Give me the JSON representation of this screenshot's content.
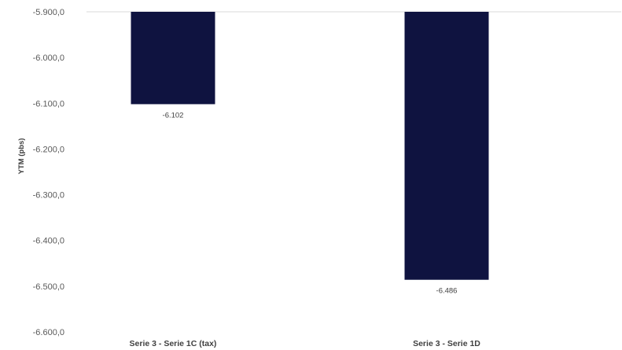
{
  "chart_data": {
    "type": "bar",
    "title": "",
    "xlabel": "",
    "ylabel": "YTM (pbs)",
    "categories": [
      "Serie 3 - Serie 1C (tax)",
      "Serie 3 - Serie 1D"
    ],
    "values": [
      -6102,
      -6486
    ],
    "data_labels": [
      "-6.102",
      "-6.486"
    ],
    "ylim": [
      -6600,
      -5900
    ],
    "y_ticks": [
      -5900,
      -6000,
      -6100,
      -6200,
      -6300,
      -6400,
      -6500,
      -6600
    ],
    "y_tick_labels": [
      "-5.900,0",
      "-6.000,0",
      "-6.100,0",
      "-6.200,0",
      "-6.300,0",
      "-6.400,0",
      "-6.500,0",
      "-6.600,0"
    ],
    "bar_color": "#0f1340",
    "axis_line_color": "#d9d9d9",
    "grid": false,
    "legend": "none"
  }
}
